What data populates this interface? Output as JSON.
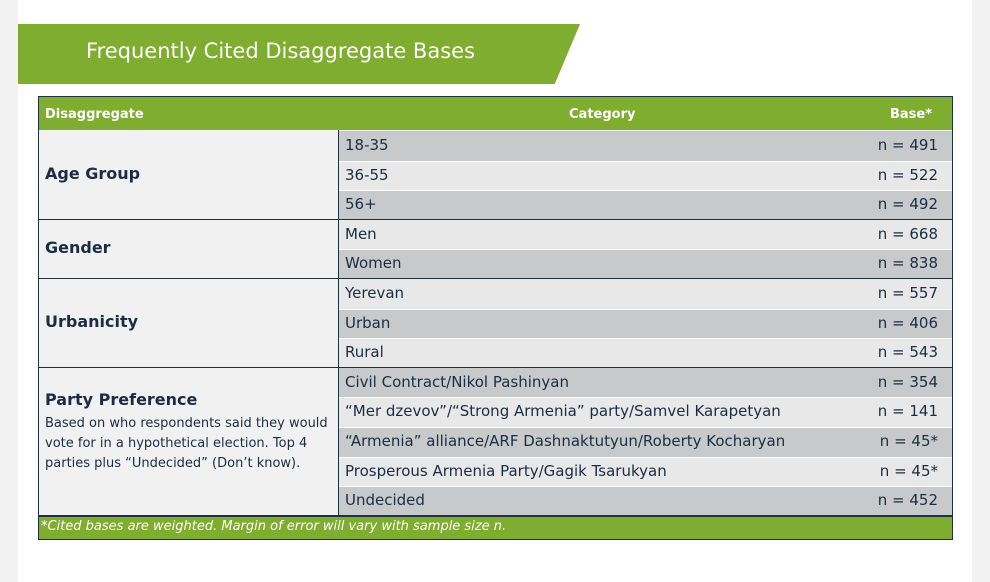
{
  "header": {
    "title": "Frequently Cited Disaggregate Bases"
  },
  "table": {
    "columns": [
      "Disaggregate",
      "Category",
      "Base*"
    ],
    "groups": [
      {
        "label": "Age Group",
        "rows": [
          [
            "18-35",
            "n = 491"
          ],
          [
            "36-55",
            "n = 522"
          ],
          [
            "56+",
            "n = 492"
          ]
        ]
      },
      {
        "label": "Gender",
        "rows": [
          [
            "Men",
            "n = 668"
          ],
          [
            "Women",
            "n = 838"
          ]
        ]
      },
      {
        "label": "Urbanicity",
        "rows": [
          [
            "Yerevan",
            "n = 557"
          ],
          [
            "Urban",
            "n = 406"
          ],
          [
            "Rural",
            "n = 543"
          ]
        ]
      },
      {
        "label": "Party Preference",
        "note": "Based on who respondents said they would vote for in a hypothetical election. Top 4 parties plus “Undecided” (Don’t know).",
        "rows": [
          [
            "Civil Contract/Nikol Pashinyan",
            "n = 354"
          ],
          [
            "“Mer dzevov”/“Strong Armenia” party/Samvel Karapetyan",
            "n = 141"
          ],
          [
            "“Armenia” alliance/ARF Dashnaktutyun/Roberty Kocharyan",
            "n = 45*"
          ],
          [
            "Prosperous Armenia Party/Gagik Tsarukyan",
            "n = 45*"
          ],
          [
            "Undecided",
            "n = 452"
          ]
        ]
      }
    ],
    "footnote": "*Cited bases are weighted. Margin of error will vary with sample size n."
  }
}
